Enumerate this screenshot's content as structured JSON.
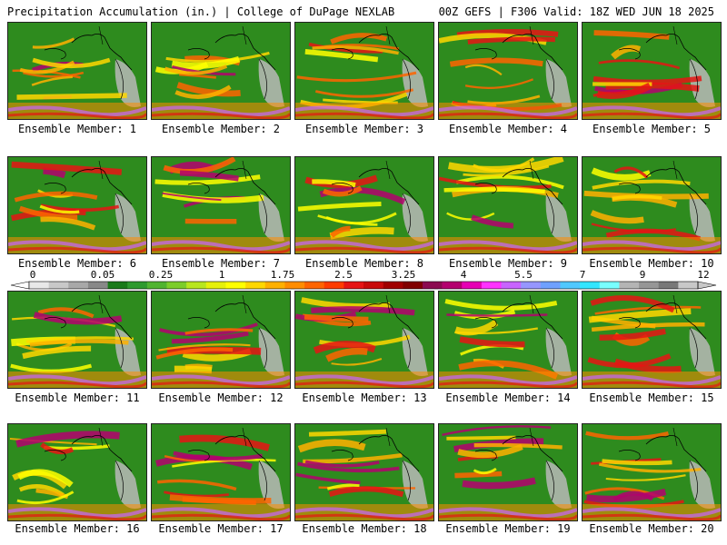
{
  "header": {
    "left": "Precipitation Accumulation (in.) | College of DuPage NEXLAB",
    "right": "00Z GEFS | F306 Valid: 18Z WED JUN 18 2025"
  },
  "members": [
    {
      "label": "Ensemble Member: 1"
    },
    {
      "label": "Ensemble Member: 2"
    },
    {
      "label": "Ensemble Member: 3"
    },
    {
      "label": "Ensemble Member: 4"
    },
    {
      "label": "Ensemble Member: 5"
    },
    {
      "label": "Ensemble Member: 6"
    },
    {
      "label": "Ensemble Member: 7"
    },
    {
      "label": "Ensemble Member: 8"
    },
    {
      "label": "Ensemble Member: 9"
    },
    {
      "label": "Ensemble Member: 10"
    },
    {
      "label": "Ensemble Member: 11"
    },
    {
      "label": "Ensemble Member: 12"
    },
    {
      "label": "Ensemble Member: 13"
    },
    {
      "label": "Ensemble Member: 14"
    },
    {
      "label": "Ensemble Member: 15"
    },
    {
      "label": "Ensemble Member: 16"
    },
    {
      "label": "Ensemble Member: 17"
    },
    {
      "label": "Ensemble Member: 18"
    },
    {
      "label": "Ensemble Member: 19"
    },
    {
      "label": "Ensemble Member: 20"
    }
  ],
  "colorbar": {
    "tick_labels": [
      "0",
      "0.05",
      "0.25",
      "1",
      "1.75",
      "2.5",
      "3.25",
      "4",
      "5.5",
      "7",
      "9",
      "12"
    ],
    "colors": [
      "#e8e8e8",
      "#c8c8c8",
      "#a8a8a8",
      "#888888",
      "#1a7a1a",
      "#2e9a2e",
      "#50b430",
      "#7ccd2a",
      "#b8e61e",
      "#e6f00a",
      "#ffff00",
      "#ffd700",
      "#ffb000",
      "#ff8c00",
      "#ff6400",
      "#ff3c00",
      "#e61414",
      "#c80a0a",
      "#a00000",
      "#800000",
      "#8b0a50",
      "#b4006e",
      "#e600b4",
      "#ff32ff",
      "#c864ff",
      "#9696ff",
      "#6ea0ff",
      "#50c8ff",
      "#32e6ff",
      "#78ffff",
      "#b4b4b4",
      "#969696",
      "#787878",
      "#c8c8c8"
    ]
  },
  "legend_colors": {
    "base_green": "#2e8b1e",
    "land_gray": "#b8b8b8",
    "coast": "#000000"
  }
}
